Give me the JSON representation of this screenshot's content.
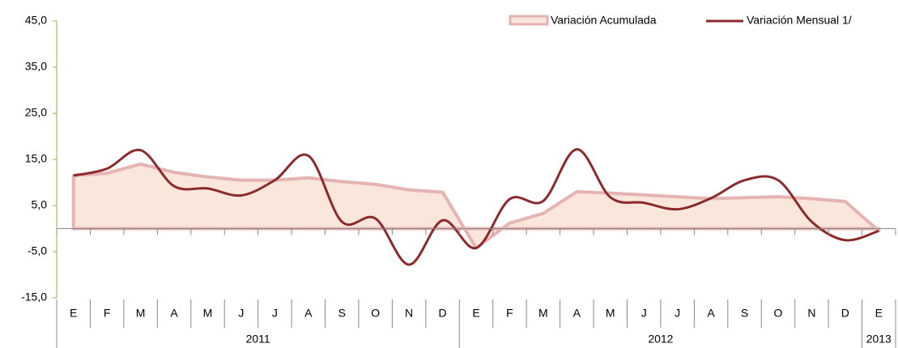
{
  "chart_data": {
    "type": "area-line",
    "categories": [
      "E",
      "F",
      "M",
      "A",
      "M",
      "J",
      "J",
      "A",
      "S",
      "O",
      "N",
      "D",
      "E",
      "F",
      "M",
      "A",
      "M",
      "J",
      "J",
      "A",
      "S",
      "O",
      "N",
      "D",
      "E"
    ],
    "years": [
      "2011",
      "2012",
      "2013"
    ],
    "series": [
      {
        "name": "Variación Acumulada",
        "type": "area",
        "color": "#fbe6dc",
        "stroke": "#e6b3b3",
        "values": [
          11.5,
          12,
          14,
          12.2,
          11.2,
          10.5,
          10.5,
          11,
          10.2,
          9.6,
          8.4,
          7.9,
          -4.2,
          1.2,
          3.3,
          8,
          7.7,
          7.3,
          6.9,
          6.5,
          6.7,
          6.9,
          6.5,
          5.9,
          -0.5
        ]
      },
      {
        "name": "Variación Mensual 1/",
        "type": "line",
        "color": "#8b2a2a",
        "values": [
          11.5,
          13,
          17,
          9.2,
          8.7,
          7.2,
          10.5,
          15.8,
          1.5,
          2.2,
          -7.8,
          1.8,
          -4.2,
          6.4,
          6,
          17.2,
          6.8,
          5.6,
          4.2,
          6.6,
          10.5,
          10.5,
          1.5,
          -2.5,
          -0.5
        ]
      }
    ],
    "ylim": [
      -15,
      45
    ],
    "yticks": [
      {
        "value": -15,
        "label": "-15,0"
      },
      {
        "value": -5,
        "label": "-5,0"
      },
      {
        "value": 5,
        "label": "5,0"
      },
      {
        "value": 15,
        "label": "15,0"
      },
      {
        "value": 25,
        "label": "25,0"
      },
      {
        "value": 35,
        "label": "35,0"
      },
      {
        "value": 45,
        "label": "45,0"
      }
    ],
    "legend": "top-right"
  }
}
